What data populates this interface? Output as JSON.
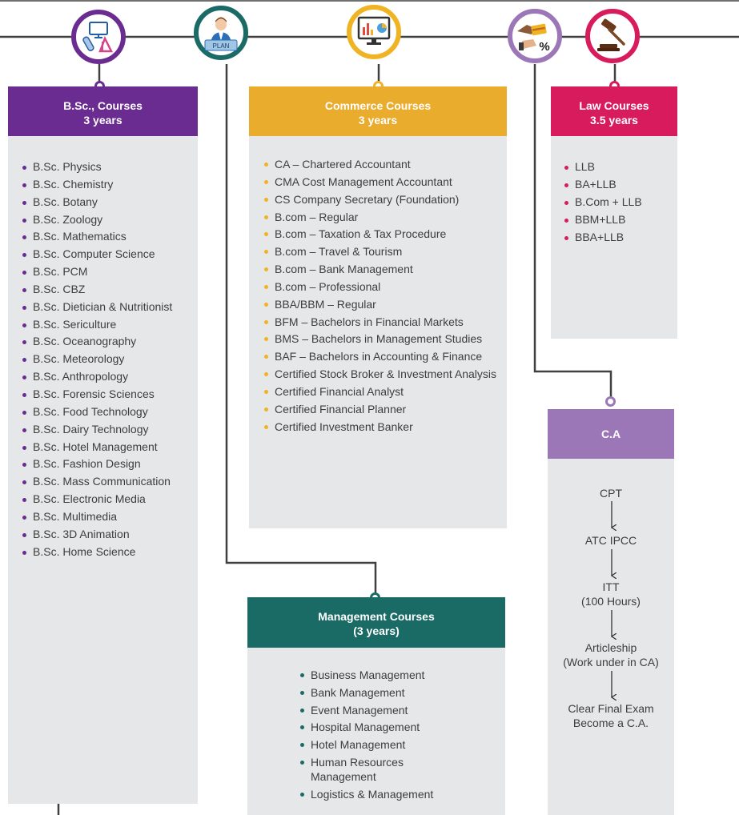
{
  "bsc": {
    "title": "B.Sc., Courses",
    "duration": "3 years",
    "color": "#6b2c91",
    "items": [
      "B.Sc. Physics",
      "B.Sc. Chemistry",
      "B.Sc. Botany",
      "B.Sc. Zoology",
      "B.Sc. Mathematics",
      "B.Sc. Computer Science",
      "B.Sc. PCM",
      "B.Sc. CBZ",
      "B.Sc. Dietician & Nutritionist",
      "B.Sc. Sericulture",
      "B.Sc. Oceanography",
      "B.Sc. Meteorology",
      "B.Sc. Anthropology",
      "B.Sc. Forensic Sciences",
      "B.Sc. Food Technology",
      "B.Sc. Dairy Technology",
      "B.Sc. Hotel Management",
      "B.Sc. Fashion Design",
      "B.Sc. Mass Communication",
      "B.Sc. Electronic Media",
      "B.Sc. Multimedia",
      "B.Sc. 3D Animation",
      "B.Sc. Home Science"
    ]
  },
  "commerce": {
    "title": "Commerce Courses",
    "duration": "3 years",
    "color": "#e9ac2c",
    "items": [
      "CA – Chartered Accountant",
      "CMA Cost Management Accountant",
      "CS Company Secretary (Foundation)",
      "B.com – Regular",
      "B.com – Taxation & Tax Procedure",
      "B.com – Travel & Tourism",
      "B.com – Bank Management",
      "B.com – Professional",
      "BBA/BBM – Regular",
      "BFM – Bachelors in Financial Markets",
      "BMS – Bachelors in Management Studies",
      "BAF – Bachelors in Accounting & Finance",
      "Certified Stock Broker & Investment Analysis",
      "Certified Financial Analyst",
      "Certified Financial Planner",
      "Certified Investment Banker"
    ]
  },
  "law": {
    "title": "Law Courses",
    "duration": "3.5 years",
    "color": "#d81b5c",
    "items": [
      "LLB",
      "BA+LLB",
      "B.Com + LLB",
      "BBM+LLB",
      "BBA+LLB"
    ]
  },
  "management": {
    "title": "Management Courses",
    "duration": "(3 years)",
    "color": "#1a6b66",
    "items": [
      "Business Management",
      "Bank Management",
      "Event Management",
      "Hospital Management",
      "Hotel Management",
      "Human Resources Management",
      "Logistics & Management"
    ]
  },
  "ca": {
    "title": "C.A",
    "color": "#9b77b8",
    "steps": [
      {
        "line1": "CPT",
        "line2": ""
      },
      {
        "line1": "ATC IPCC",
        "line2": ""
      },
      {
        "line1": "ITT",
        "line2": "(100 Hours)"
      },
      {
        "line1": "Articleship",
        "line2": "(Work under in CA)"
      },
      {
        "line1": "Clear Final Exam",
        "line2": "Become a C.A."
      }
    ]
  },
  "icons": {
    "science": "computer-flask-ruler-icon",
    "plan_badge": "PLAN",
    "plan": "person-with-plan-sign-icon",
    "commerce": "monitor-charts-icon",
    "finance": "card-hands-percent-icon",
    "law": "gavel-icon"
  }
}
